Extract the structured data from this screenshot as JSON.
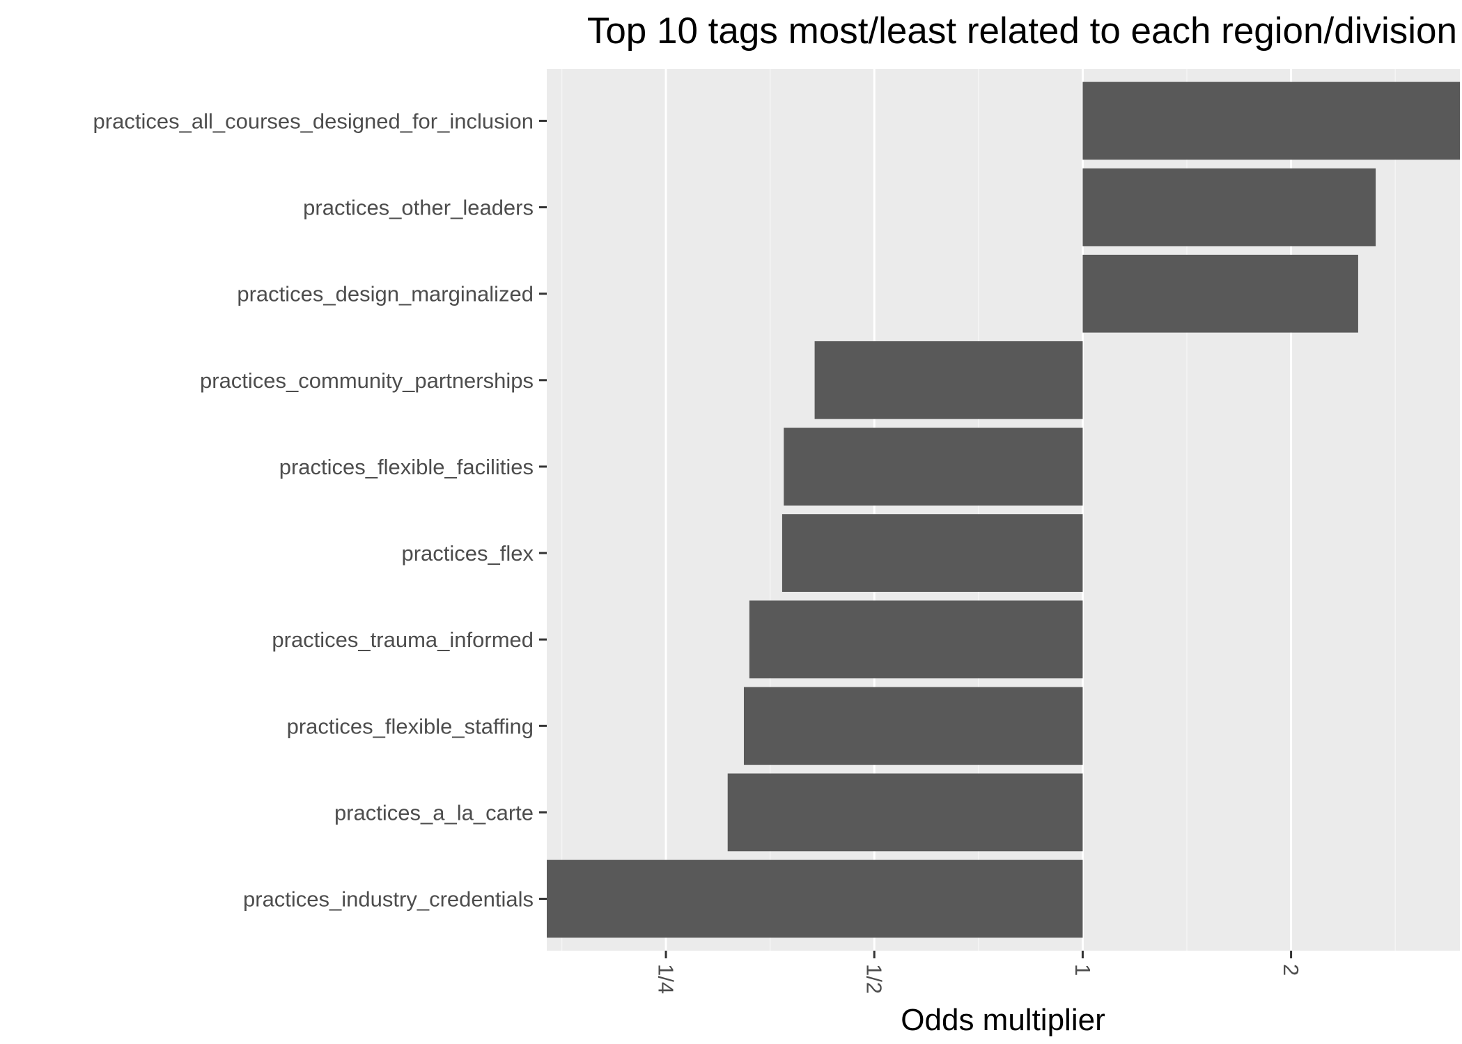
{
  "chart_data": {
    "type": "bar",
    "orientation": "horizontal",
    "title": "Top 10 tags most/least related to each region/division",
    "xlabel": "Odds multiplier",
    "ylabel": "",
    "x_scale": "log2",
    "xlim": [
      0.1682,
      3.507
    ],
    "x_ticks": [
      {
        "value": 0.25,
        "label": "1/4"
      },
      {
        "value": 0.5,
        "label": "1/2"
      },
      {
        "value": 1,
        "label": "1"
      },
      {
        "value": 2,
        "label": "2"
      }
    ],
    "baseline": 1,
    "grid": true,
    "categories": [
      "practices_all_courses_designed_for_inclusion",
      "practices_other_leaders",
      "practices_design_marginalized",
      "practices_community_partnerships",
      "practices_flexible_facilities",
      "practices_flex",
      "practices_trauma_informed",
      "practices_flexible_staffing",
      "practices_a_la_carte",
      "practices_industry_credentials"
    ],
    "values": [
      3.51,
      2.65,
      2.5,
      0.41,
      0.37,
      0.368,
      0.33,
      0.324,
      0.307,
      0.168
    ],
    "colors": {
      "bar": "#595959",
      "panel": "#ebebeb",
      "grid_major": "#ffffff",
      "grid_minor": "#f5f5f5",
      "tick": "#333333",
      "tick_label": "#4d4d4d",
      "title": "#000000"
    }
  }
}
